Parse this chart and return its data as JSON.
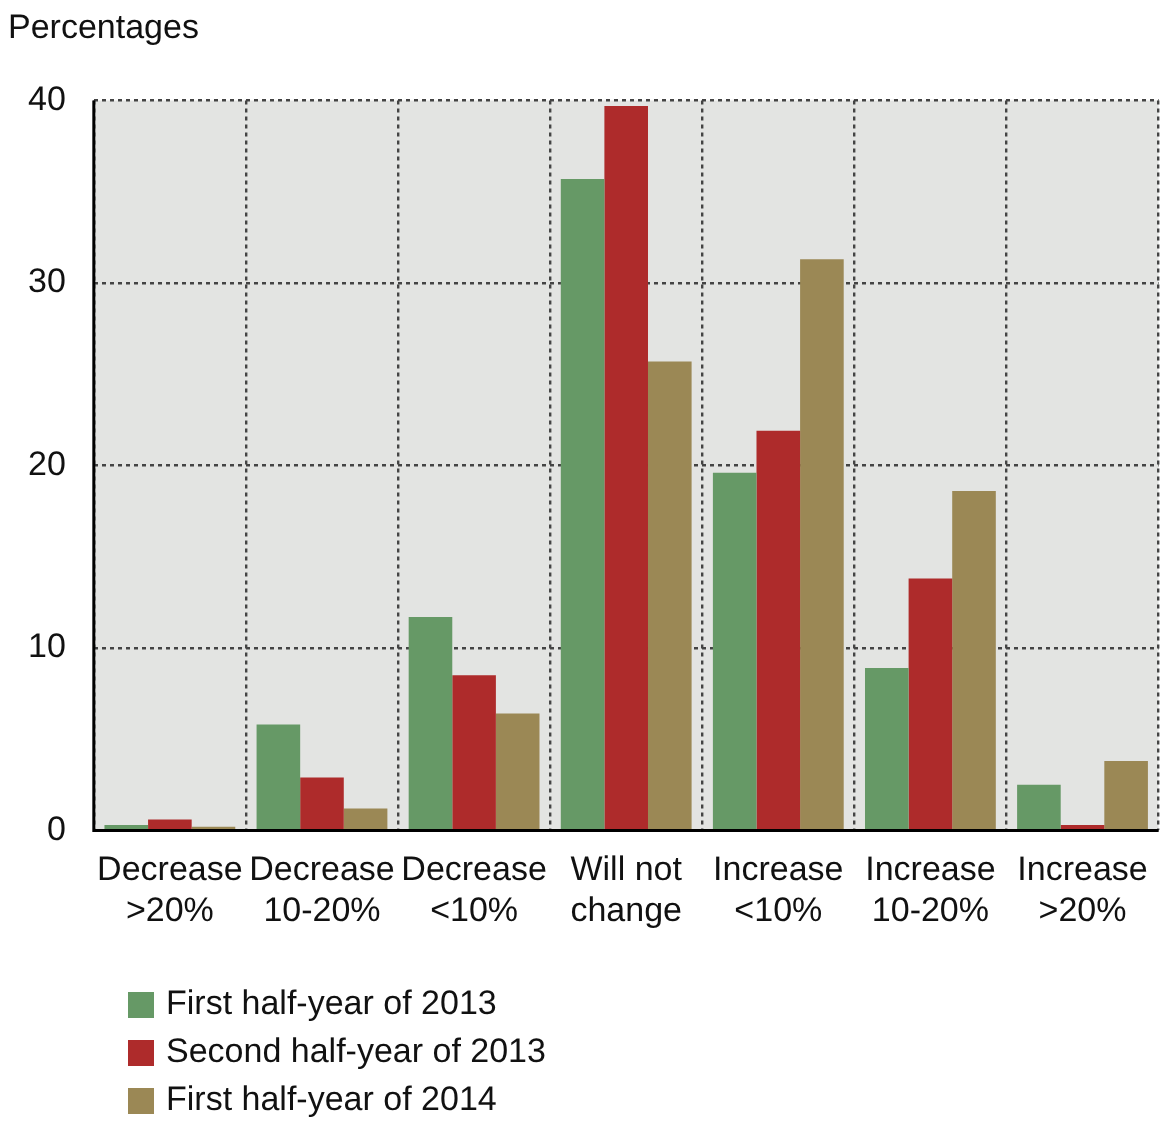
{
  "chart_data": {
    "type": "bar",
    "ylabel": "Percentages",
    "categories": [
      "Decrease\n>20%",
      "Decrease\n10-20%",
      "Decrease\n<10%",
      "Will not\nchange",
      "Increase\n<10%",
      "Increase\n10-20%",
      "Increase\n>20%"
    ],
    "series": [
      {
        "name": "First half-year of 2013",
        "color": "#669966",
        "values": [
          0.3,
          5.8,
          11.7,
          35.7,
          19.6,
          8.9,
          2.5
        ]
      },
      {
        "name": "Second half-year of 2013",
        "color": "#ae2b2b",
        "values": [
          0.6,
          2.9,
          8.5,
          39.7,
          21.9,
          13.8,
          0.3
        ]
      },
      {
        "name": "First half-year of 2014",
        "color": "#9b8855",
        "values": [
          0.2,
          1.2,
          6.4,
          25.7,
          31.3,
          18.6,
          3.8
        ]
      }
    ],
    "ylim": [
      0,
      40
    ],
    "yticks": [
      0,
      10,
      20,
      30,
      40
    ],
    "grid": true,
    "legend": "bottom left"
  }
}
